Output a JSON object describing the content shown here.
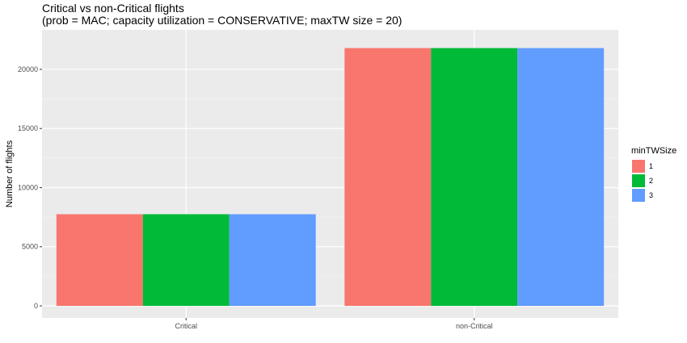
{
  "chart_data": {
    "type": "bar",
    "title": "Critical vs non-Critical flights",
    "subtitle": "(prob = MAC; capacity utilization = CONSERVATIVE; maxTW size = 20)",
    "xlabel": "",
    "ylabel": "Number of flights",
    "categories": [
      "Critical",
      "non-Critical"
    ],
    "series": [
      {
        "name": "1",
        "color": "#F8766D",
        "values": [
          7750,
          21800
        ]
      },
      {
        "name": "2",
        "color": "#00BA38",
        "values": [
          7750,
          21800
        ]
      },
      {
        "name": "3",
        "color": "#619CFF",
        "values": [
          7750,
          21800
        ]
      }
    ],
    "ylim": [
      0,
      23000
    ],
    "yticks": [
      0,
      5000,
      10000,
      15000,
      20000
    ],
    "ytick_labels": [
      "0",
      "5000",
      "10000",
      "15000",
      "20000"
    ],
    "legend_title": "minTWSize",
    "legend_position": "right",
    "grid": true,
    "panel_background": "#EBEBEB"
  }
}
